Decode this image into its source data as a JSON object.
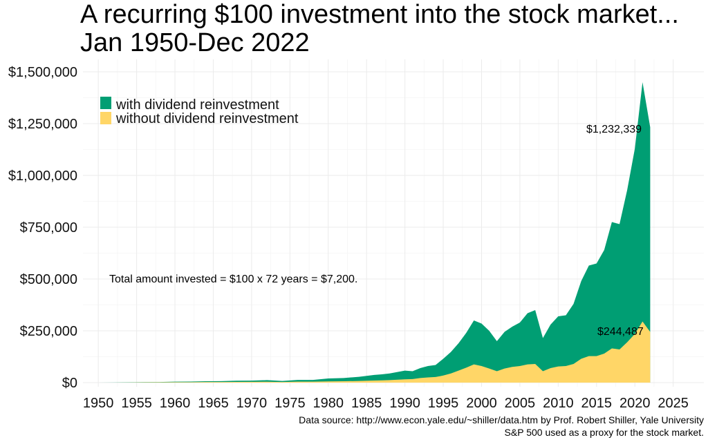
{
  "title_line1": "A recurring $100 investment into the stock market...",
  "title_line2": "Jan 1950-Dec 2022",
  "legend": [
    {
      "label": "with dividend reinvestment",
      "color": "#009E73"
    },
    {
      "label": "without dividend reinvestment",
      "color": "#FFD667"
    }
  ],
  "annotations": {
    "total_invested": "Total amount invested = $100 x 72 years = $7,200.",
    "final_with": "$1,232,339",
    "final_without": "$244,487"
  },
  "caption_line1": "Data source: http://www.econ.yale.edu/~shiller/data.htm by Prof. Robert Shiller, Yale University",
  "caption_line2": "S&P 500 used as a proxy for the stock market.",
  "chart_data": {
    "type": "area",
    "xlim": [
      1948,
      2029
    ],
    "ylim": [
      -20000,
      1560000
    ],
    "x_ticks": [
      1950,
      1955,
      1960,
      1965,
      1970,
      1975,
      1980,
      1985,
      1990,
      1995,
      2000,
      2005,
      2010,
      2015,
      2020,
      2025
    ],
    "x_tick_labels": [
      "1950",
      "1955",
      "1960",
      "1965",
      "1970",
      "1975",
      "1980",
      "1985",
      "1990",
      "1995",
      "2000",
      "2005",
      "2010",
      "2015",
      "2020",
      "2025"
    ],
    "y_ticks": [
      0,
      250000,
      500000,
      750000,
      1000000,
      1250000,
      1500000
    ],
    "y_tick_labels": [
      "$0",
      "$250,000",
      "$500,000",
      "$750,000",
      "$1,000,000",
      "$1,250,000",
      "$1,500,000"
    ],
    "grid": true,
    "legend_position": "top-left",
    "x": [
      1950,
      1952,
      1954,
      1956,
      1958,
      1960,
      1962,
      1964,
      1966,
      1968,
      1970,
      1972,
      1974,
      1976,
      1978,
      1980,
      1982,
      1984,
      1986,
      1987,
      1988,
      1990,
      1991,
      1992,
      1993,
      1994,
      1995,
      1996,
      1997,
      1998,
      1999,
      2000,
      2001,
      2002,
      2003,
      2004,
      2005,
      2006,
      2007,
      2008,
      2009,
      2010,
      2011,
      2012,
      2013,
      2014,
      2015,
      2016,
      2017,
      2018,
      2019,
      2020,
      2021,
      2022
    ],
    "series": [
      {
        "name": "with dividend reinvestment",
        "color": "#009E73",
        "values": [
          0,
          400,
          1200,
          2500,
          3000,
          4500,
          5000,
          6500,
          7000,
          9000,
          9500,
          12000,
          8000,
          13000,
          13000,
          20000,
          22000,
          28000,
          37000,
          40000,
          44000,
          58000,
          55000,
          70000,
          80000,
          85000,
          115000,
          148000,
          190000,
          240000,
          300000,
          285000,
          250000,
          200000,
          245000,
          270000,
          290000,
          335000,
          350000,
          215000,
          280000,
          320000,
          325000,
          380000,
          490000,
          565000,
          575000,
          640000,
          775000,
          765000,
          930000,
          1130000,
          1450000,
          1232339
        ]
      },
      {
        "name": "without dividend reinvestment",
        "color": "#FFD667",
        "values": [
          0,
          200,
          600,
          1200,
          1500,
          2000,
          2200,
          2800,
          3000,
          3500,
          3600,
          4200,
          3000,
          4500,
          4500,
          6000,
          6500,
          8000,
          10000,
          11000,
          12000,
          16000,
          17000,
          22000,
          25000,
          27000,
          34000,
          44000,
          58000,
          72000,
          88000,
          80000,
          68000,
          55000,
          68000,
          76000,
          80000,
          88000,
          90000,
          55000,
          70000,
          78000,
          80000,
          90000,
          115000,
          128000,
          128000,
          140000,
          165000,
          160000,
          195000,
          235000,
          295000,
          244487
        ]
      }
    ]
  }
}
